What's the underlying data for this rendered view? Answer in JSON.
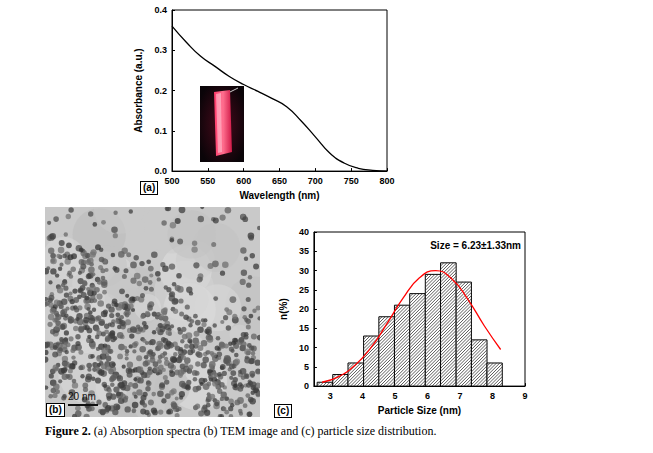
{
  "chart_data": [
    {
      "type": "line",
      "label": "(a)",
      "x_label": "Wavelength (nm)",
      "y_label": "Absorbance (a.u.)",
      "x": [
        500,
        520,
        540,
        560,
        580,
        600,
        620,
        640,
        660,
        680,
        700,
        720,
        740,
        760,
        780,
        800
      ],
      "values": [
        0.36,
        0.32,
        0.285,
        0.26,
        0.235,
        0.215,
        0.198,
        0.18,
        0.16,
        0.125,
        0.085,
        0.045,
        0.02,
        0.007,
        0.002,
        0
      ],
      "color": "#000000",
      "xlim": [
        500,
        800
      ],
      "xticks": [
        500,
        550,
        600,
        650,
        700,
        750,
        800
      ],
      "ylim": [
        0,
        0.4
      ],
      "yticks": [
        {
          "value": 0,
          "label": "0.0"
        },
        {
          "value": 0.1,
          "label": "0.1"
        },
        {
          "value": 0.2,
          "label": "0.2"
        },
        {
          "value": 0.3,
          "label": "0.3"
        },
        {
          "value": 0.4,
          "label": "0.4"
        }
      ],
      "grid": false
    },
    {
      "type": "histogram",
      "label": "(c)",
      "annotation": "Size = 6.23±1.33nm",
      "x_label": "Particle Size (nm)",
      "y_label": "n(%)",
      "bins": [
        2.6,
        3.08,
        3.55,
        4.03,
        4.5,
        4.98,
        5.45,
        5.93,
        6.4,
        6.88,
        7.35,
        7.83,
        8.3
      ],
      "values": [
        1,
        3,
        6,
        13,
        18,
        21,
        24,
        29,
        32,
        27,
        12,
        6
      ],
      "color": "#000000",
      "series": [
        {
          "type": "line",
          "color": "#ff0000",
          "x": [
            2.75,
            3.25,
            3.75,
            4.25,
            4.75,
            5.25,
            5.75,
            6.25,
            6.75,
            7.25,
            7.75,
            8.25
          ],
          "values": [
            1.0,
            2.4,
            5.3,
            9.9,
            16.2,
            22.9,
            28.1,
            30,
            27.8,
            22.4,
            15.6,
            9.5
          ]
        }
      ],
      "xlim": [
        2.5,
        9
      ],
      "xticks": [
        3,
        4,
        5,
        6,
        7,
        8,
        9
      ],
      "ylim": [
        0,
        40
      ],
      "yticks": [
        0,
        5,
        10,
        15,
        20,
        25,
        30,
        35,
        40
      ],
      "grid": false
    }
  ],
  "image": {
    "label": "(b)",
    "scale_bar": "20 nm"
  },
  "caption": {
    "label": "Figure 2.",
    "text": "(a) Absorption spectra (b) TEM image and (c) particle size distribution."
  }
}
